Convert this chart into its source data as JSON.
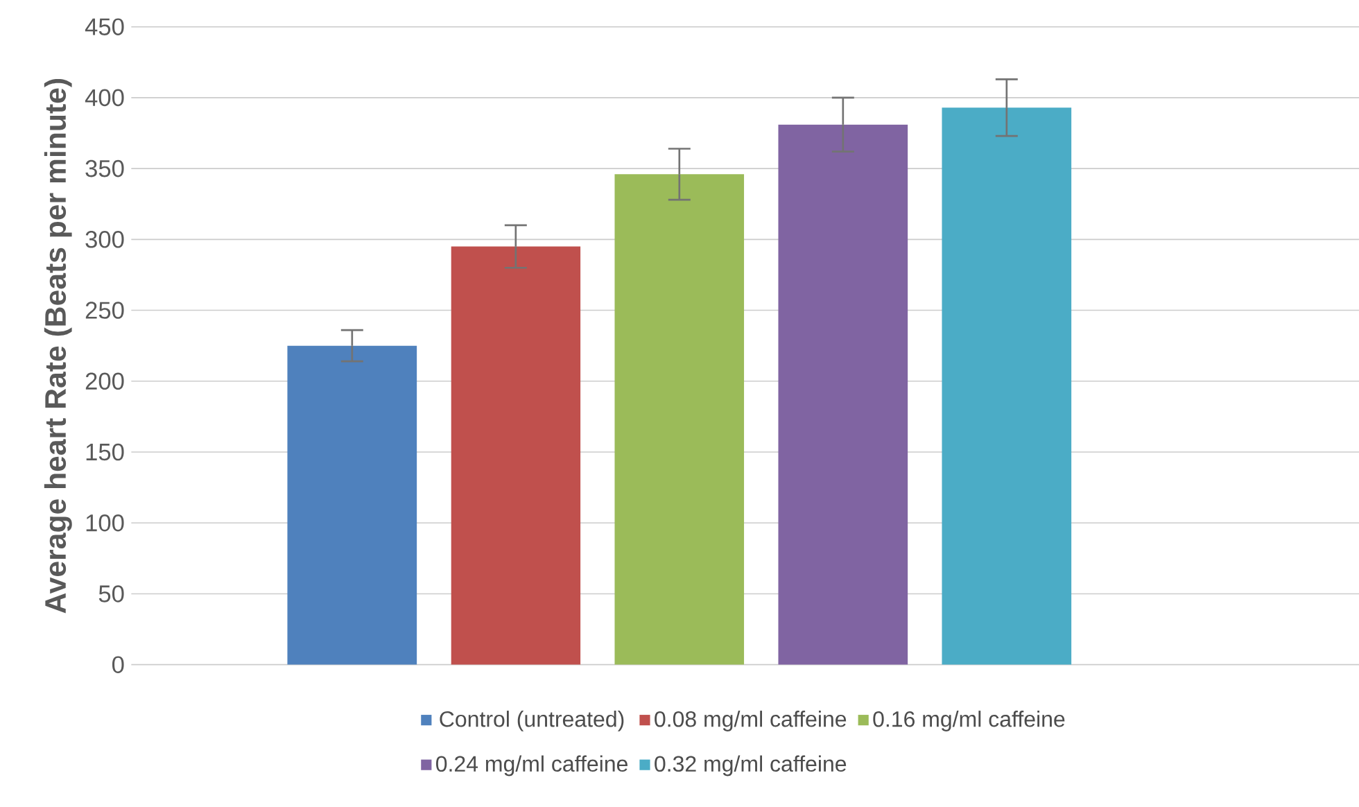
{
  "chart_data": {
    "type": "bar",
    "ylabel": "Average heart Rate (Beats per minute)",
    "categories": [
      null
    ],
    "series": [
      {
        "name": "Control (untreated)",
        "color": "#4f81bd",
        "values": [
          225
        ],
        "errors": [
          11
        ]
      },
      {
        "name": "0.08 mg/ml caffeine",
        "color": "#c0504d",
        "values": [
          295
        ],
        "errors": [
          15
        ]
      },
      {
        "name": "0.16 mg/ml caffeine",
        "color": "#9bbb59",
        "values": [
          346
        ],
        "errors": [
          18
        ]
      },
      {
        "name": "0.24 mg/ml caffeine",
        "color": "#8064a2",
        "values": [
          381
        ],
        "errors": [
          19
        ]
      },
      {
        "name": "0.32 mg/ml caffeine",
        "color": "#4bacc6",
        "values": [
          393
        ],
        "errors": [
          20
        ]
      }
    ],
    "ylim": [
      0,
      450
    ],
    "yticks": [
      0,
      50,
      100,
      150,
      200,
      250,
      300,
      350,
      400,
      450
    ],
    "grid": "y",
    "legend": "bottom"
  }
}
